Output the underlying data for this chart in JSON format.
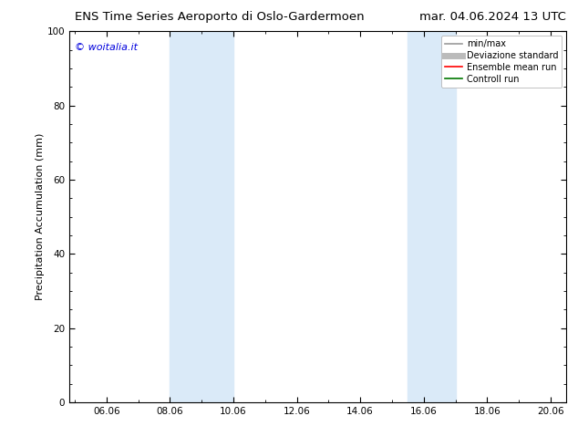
{
  "title_left": "ENS Time Series Aeroporto di Oslo-Gardermoen",
  "title_right": "mar. 04.06.2024 13 UTC",
  "ylabel": "Precipitation Accumulation (mm)",
  "watermark": "© woitalia.it",
  "watermark_color": "#0000dd",
  "xlim": [
    4.83,
    20.5
  ],
  "ylim": [
    0,
    100
  ],
  "yticks": [
    0,
    20,
    40,
    60,
    80,
    100
  ],
  "xtick_labels": [
    "06.06",
    "08.06",
    "10.06",
    "12.06",
    "14.06",
    "16.06",
    "18.06",
    "20.06"
  ],
  "xtick_positions": [
    6,
    8,
    10,
    12,
    14,
    16,
    18,
    20
  ],
  "shade_bands": [
    {
      "xmin": 8.0,
      "xmax": 10.0,
      "color": "#daeaf8"
    },
    {
      "xmin": 15.5,
      "xmax": 17.0,
      "color": "#daeaf8"
    }
  ],
  "legend_entries": [
    {
      "label": "min/max",
      "color": "#999999",
      "lw": 1.2,
      "style": "solid"
    },
    {
      "label": "Deviazione standard",
      "color": "#bbbbbb",
      "lw": 5,
      "style": "solid"
    },
    {
      "label": "Ensemble mean run",
      "color": "#ff0000",
      "lw": 1.2,
      "style": "solid"
    },
    {
      "label": "Controll run",
      "color": "#007700",
      "lw": 1.2,
      "style": "solid"
    }
  ],
  "bg_color": "#ffffff",
  "plot_bg_color": "#ffffff",
  "title_fontsize": 9.5,
  "ylabel_fontsize": 8,
  "tick_fontsize": 7.5,
  "watermark_fontsize": 8,
  "legend_fontsize": 7
}
